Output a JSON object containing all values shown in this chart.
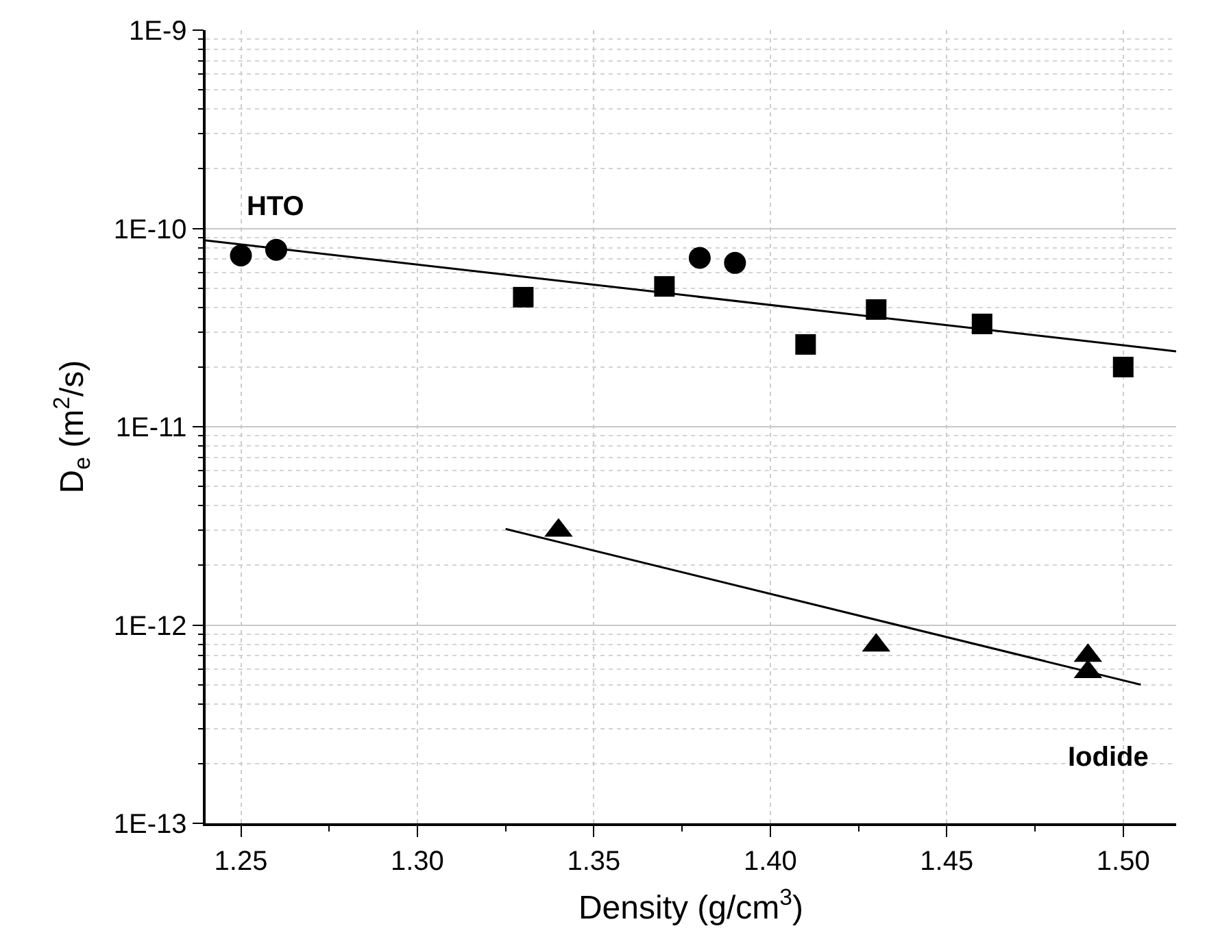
{
  "chart_data": {
    "type": "scatter",
    "xlabel": "Density (g/cm$^{3}$)",
    "ylabel": "D$_{e}$ (m$^{2}$/s)",
    "log": "y",
    "grid": true,
    "xlim": [
      1.24,
      1.515
    ],
    "ylim": [
      1e-13,
      1e-09
    ],
    "xticks": [
      {
        "value": 1.25,
        "label": "1.25"
      },
      {
        "value": 1.3,
        "label": "1.30"
      },
      {
        "value": 1.35,
        "label": "1.35"
      },
      {
        "value": 1.4,
        "label": "1.40"
      },
      {
        "value": 1.45,
        "label": "1.45"
      },
      {
        "value": 1.5,
        "label": "1.50"
      }
    ],
    "yticks": [
      {
        "value": 1e-13,
        "label": "1E-13"
      },
      {
        "value": 1e-12,
        "label": "1E-12"
      },
      {
        "value": 1e-11,
        "label": "1E-11"
      },
      {
        "value": 1e-10,
        "label": "1E-10"
      },
      {
        "value": 1e-09,
        "label": "1E-9"
      }
    ],
    "series": [
      {
        "marker": "circle",
        "color": "#000000",
        "x": [
          1.25,
          1.26,
          1.38,
          1.39
        ],
        "values": [
          7.3e-11,
          7.8e-11,
          7.1e-11,
          6.7e-11
        ]
      },
      {
        "marker": "square",
        "color": "#000000",
        "x": [
          1.33,
          1.37,
          1.41,
          1.43,
          1.46,
          1.5
        ],
        "values": [
          4.5e-11,
          5.1e-11,
          2.6e-11,
          3.9e-11,
          3.3e-11,
          2e-11
        ]
      },
      {
        "marker": "triangle",
        "color": "#000000",
        "x": [
          1.34,
          1.43,
          1.49,
          1.49
        ],
        "values": [
          3e-12,
          7.9e-13,
          7e-13,
          5.8e-13
        ]
      },
      {
        "type": "line",
        "color": "#000000",
        "x": [
          1.24,
          1.515
        ],
        "values": [
          8.7e-11,
          2.4e-11
        ]
      },
      {
        "type": "line",
        "color": "#000000",
        "x": [
          1.325,
          1.505
        ],
        "values": [
          3.05e-12,
          5e-13
        ]
      }
    ],
    "annotations": [
      "HTO",
      "Iodide"
    ]
  }
}
